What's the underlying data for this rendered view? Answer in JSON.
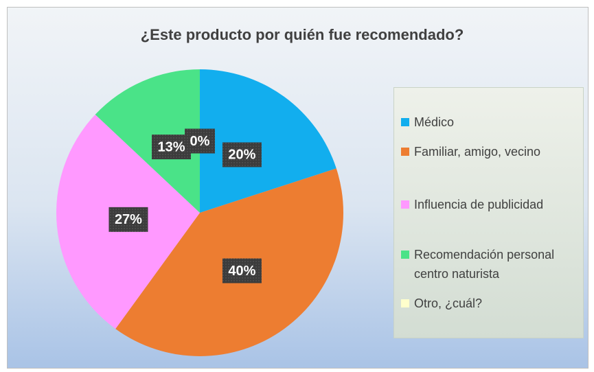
{
  "chart_data": {
    "type": "pie",
    "title": "¿Este producto por quién fue recomendado?",
    "categories": [
      "Médico",
      "Familiar, amigo, vecino",
      "Influencia de publicidad",
      "Recomendación personal centro naturista",
      "Otro, ¿cuál?"
    ],
    "values": [
      20,
      40,
      27,
      13,
      0
    ],
    "value_labels": [
      "20%",
      "40%",
      "27%",
      "13%",
      "0%"
    ],
    "colors": [
      "#12aeee",
      "#ed7d31",
      "#ff99ff",
      "#4ae388",
      "#ffffcc"
    ],
    "legend": "right"
  }
}
